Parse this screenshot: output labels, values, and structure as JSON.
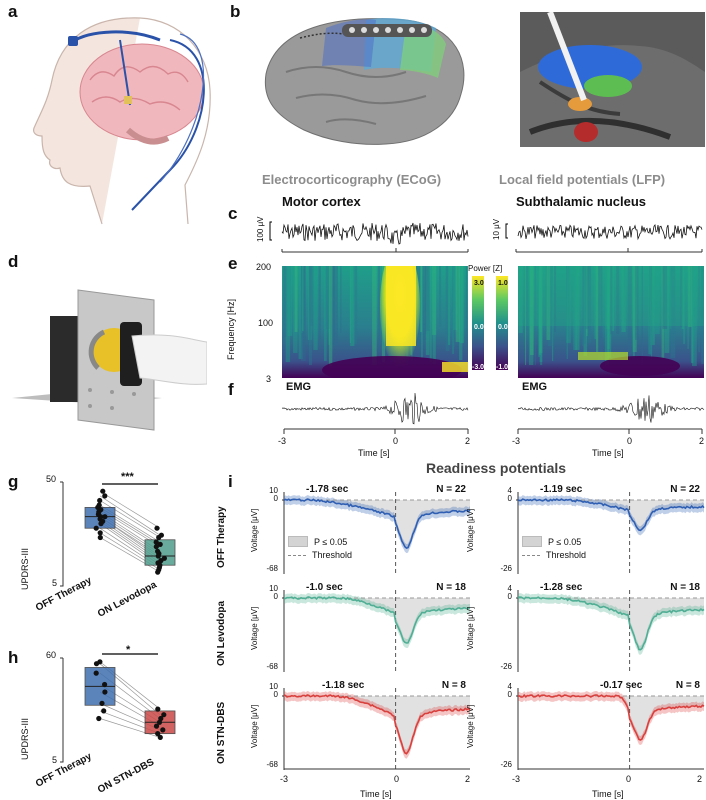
{
  "panel_labels": {
    "a": "a",
    "b": "b",
    "c": "c",
    "d": "d",
    "e": "e",
    "f": "f",
    "g": "g",
    "h": "h",
    "i": "i"
  },
  "headings": {
    "ecog": "Electrocorticography (ECoG)",
    "lfp": "Local field potentials (LFP)",
    "motor_cortex": "Motor cortex",
    "stn": "Subthalamic nucleus",
    "readiness": "Readiness potentials"
  },
  "scalebars": {
    "ecog": "100 μV",
    "lfp": "10 μV"
  },
  "spectrogram": {
    "ylabel": "Frequency [Hz]",
    "yticks": [
      "200",
      "100",
      "3"
    ],
    "cbar_title": "Power [Z]",
    "cbar_ecog": [
      "3.0",
      "0.0",
      "-3.0"
    ],
    "cbar_lfp": [
      "1.0",
      "0.0",
      "-1.0"
    ]
  },
  "emg_label": "EMG",
  "time_axis": {
    "label": "Time [s]",
    "ticks": [
      "-3",
      "0",
      "2"
    ]
  },
  "chart_data": [
    {
      "type": "box",
      "panel": "g",
      "ylabel": "UPDRS-III",
      "yticks": [
        "50",
        "5"
      ],
      "ylim": [
        5,
        50
      ],
      "categories": [
        "OFF Therapy",
        "ON Levodopa"
      ],
      "significance": "***",
      "boxes": [
        {
          "q1": 30,
          "median": 35,
          "q3": 39
        },
        {
          "q1": 14,
          "median": 18,
          "q3": 25
        }
      ]
    },
    {
      "type": "box",
      "panel": "h",
      "ylabel": "UPDRS-III",
      "yticks": [
        "60",
        "5"
      ],
      "ylim": [
        5,
        60
      ],
      "categories": [
        "OFF Therapy",
        "ON STN-DBS"
      ],
      "significance": "*",
      "boxes": [
        {
          "q1": 35,
          "median": 45,
          "q3": 55
        },
        {
          "q1": 20,
          "median": 26,
          "q3": 32
        }
      ]
    },
    {
      "type": "line",
      "panel": "i",
      "title": "Readiness potentials",
      "xlabel": "Time [s]",
      "xticks": [
        "-3",
        "0",
        "2"
      ],
      "ylabel": "Voltage [μV]",
      "legend": [
        "P ≤ 0.05",
        "Threshold"
      ],
      "rows": [
        {
          "condition": "OFF Therapy",
          "color": "#2f5fb3",
          "ecog": {
            "onset": "-1.78 sec",
            "n": "N = 22",
            "yticks": [
              "10",
              "0",
              "-68"
            ]
          },
          "lfp": {
            "onset": "-1.19 sec",
            "n": "N = 22",
            "yticks": [
              "4",
              "0",
              "-26"
            ]
          }
        },
        {
          "condition": "ON Levodopa",
          "color": "#4fae93",
          "ecog": {
            "onset": "-1.0 sec",
            "n": "N = 18",
            "yticks": [
              "10",
              "0",
              "-68"
            ]
          },
          "lfp": {
            "onset": "-1.28 sec",
            "n": "N = 18",
            "yticks": [
              "4",
              "0",
              "-26"
            ]
          }
        },
        {
          "condition": "ON STN-DBS",
          "color": "#d9403d",
          "ecog": {
            "onset": "-1.18 sec",
            "n": "N = 8",
            "yticks": [
              "10",
              "0",
              "-68"
            ]
          },
          "lfp": {
            "onset": "-0.17 sec",
            "n": "N = 8",
            "yticks": [
              "4",
              "0",
              "-26"
            ]
          }
        }
      ]
    }
  ]
}
